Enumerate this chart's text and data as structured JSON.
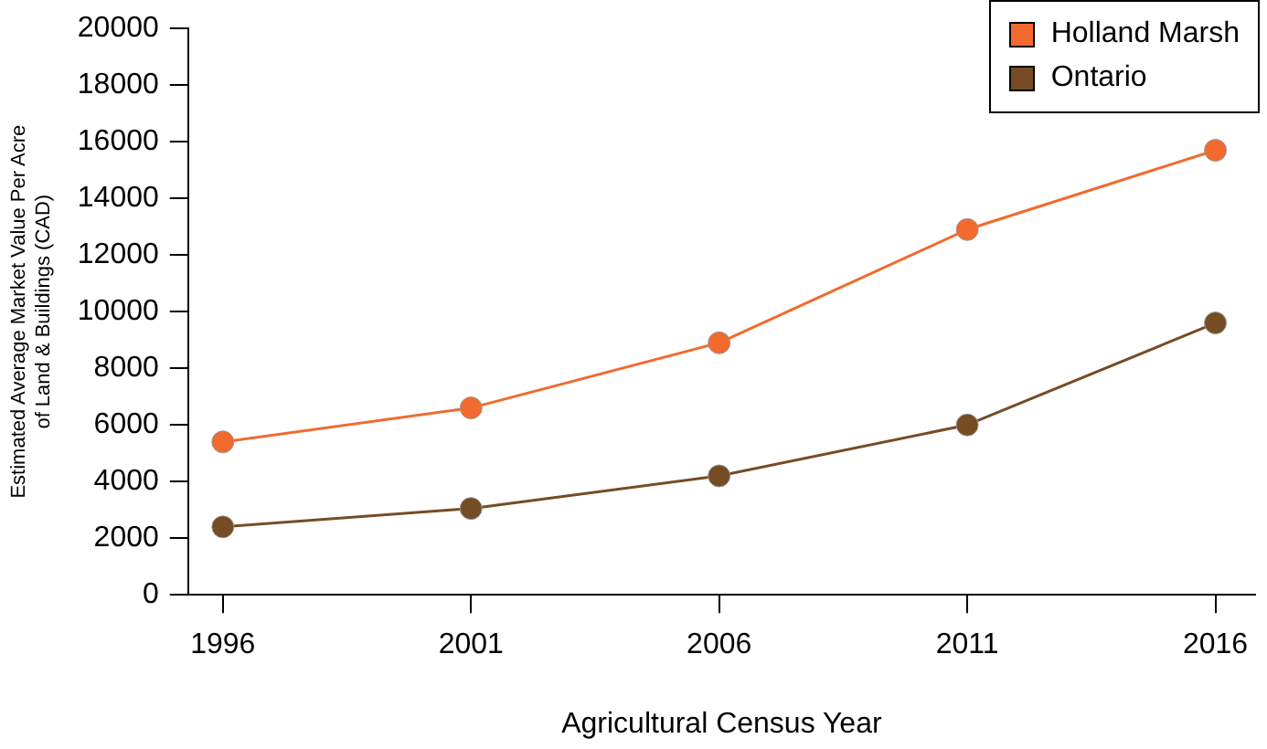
{
  "chart_data": {
    "type": "line",
    "xlabel": "Agricultural Census Year",
    "ylabel": "Estimated Average Market Value Per Acre\nof Land & Buildings (CAD)",
    "x": [
      1996,
      2001,
      2006,
      2011,
      2016
    ],
    "series": [
      {
        "name": "Holland Marsh",
        "color": "#f26a2e",
        "values": [
          5400,
          6600,
          8900,
          12900,
          15700
        ]
      },
      {
        "name": "Ontario",
        "color": "#754c24",
        "values": [
          2400,
          3050,
          4200,
          6000,
          9600
        ]
      }
    ],
    "xlim": [
      1995.3,
      2016.8
    ],
    "xticks": [
      1996,
      2001,
      2006,
      2011,
      2016
    ],
    "ylim": [
      0,
      20000
    ],
    "yticks": [
      0,
      2000,
      4000,
      6000,
      8000,
      10000,
      12000,
      14000,
      16000,
      18000,
      20000
    ],
    "grid": false,
    "legend": "top right",
    "marker": "circle",
    "line_style": "solid"
  }
}
